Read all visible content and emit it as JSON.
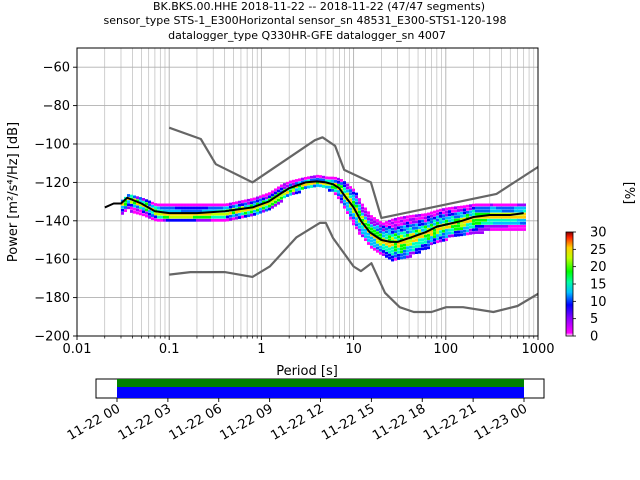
{
  "chart_data": {
    "type": "ppsd",
    "title_lines": [
      "BK.BKS.00.HHE   2018-11-22 -- 2018-11-22  (47/47 segments)",
      "sensor_type STS-1_E300Horizontal sensor_sn 48531_E300-STS1-120-198",
      "datalogger_type Q330HR-GFE datalogger_sn 4007"
    ],
    "xlabel": "Period [s]",
    "ylabel": "Power [m²/s⁴/Hz] [dB]",
    "xscale": "log",
    "xlim": [
      0.01,
      1000
    ],
    "ylim": [
      -200,
      -50
    ],
    "xticks": [
      {
        "value": 0.01,
        "label": "0.01"
      },
      {
        "value": 0.1,
        "label": "0.1"
      },
      {
        "value": 1,
        "label": "1"
      },
      {
        "value": 10,
        "label": "10"
      },
      {
        "value": 100,
        "label": "100"
      },
      {
        "value": 1000,
        "label": "1000"
      }
    ],
    "yticks": [
      -60,
      -80,
      -100,
      -120,
      -140,
      -160,
      -180,
      -200
    ],
    "grid": true,
    "nhnm": {
      "name": "NHNM",
      "color": "#666666",
      "x": [
        0.1,
        0.22,
        0.32,
        0.8,
        3.8,
        4.6,
        6.3,
        7.9,
        15.4,
        20,
        354.8,
        1000
      ],
      "y": [
        -91.5,
        -97.4,
        -110.5,
        -120.0,
        -98.0,
        -96.5,
        -101.0,
        -113.5,
        -120.0,
        -138.5,
        -126.0,
        -112.0
      ]
    },
    "nlnm": {
      "name": "NLNM",
      "color": "#666666",
      "x": [
        0.1,
        0.17,
        0.4,
        0.8,
        1.24,
        2.4,
        4.3,
        5.0,
        6.0,
        10.0,
        12.0,
        15.6,
        21.9,
        31.6,
        45.0,
        70.0,
        101.0,
        154.0,
        328.0,
        600.0,
        1000
      ],
      "y": [
        -168.0,
        -166.7,
        -166.7,
        -169.2,
        -163.7,
        -148.6,
        -141.1,
        -141.1,
        -149.0,
        -163.8,
        -166.2,
        -162.1,
        -177.5,
        -185.0,
        -187.5,
        -187.5,
        -185.0,
        -185.0,
        -187.5,
        -184.4,
        -178.0
      ]
    },
    "mean_curve": {
      "name": "mean",
      "color": "#000000",
      "x": [
        0.02,
        0.025,
        0.03,
        0.035,
        0.05,
        0.07,
        0.1,
        0.2,
        0.4,
        0.8,
        1.2,
        1.6,
        2,
        3,
        4,
        5,
        6,
        7,
        8,
        10,
        12,
        15,
        20,
        25,
        30,
        40,
        60,
        80,
        100,
        150,
        200,
        300,
        500,
        700
      ],
      "y": [
        -133,
        -131,
        -131,
        -128,
        -131,
        -135,
        -136,
        -136,
        -135,
        -133,
        -130,
        -126,
        -123,
        -120,
        -119.5,
        -120,
        -121,
        -123,
        -127,
        -133,
        -140,
        -146,
        -150,
        -151,
        -151,
        -149,
        -146,
        -143,
        -142,
        -140,
        -138,
        -137,
        -137,
        -136
      ]
    },
    "histogram_spread": {
      "x": [
        0.03,
        0.035,
        0.05,
        0.07,
        0.1,
        0.2,
        0.4,
        0.8,
        1.2,
        1.6,
        2,
        3,
        4,
        5,
        6,
        7,
        8,
        10,
        12,
        15,
        20,
        25,
        30,
        40,
        60,
        80,
        100,
        150,
        200,
        300,
        500,
        700
      ],
      "y_low": [
        -136,
        -134,
        -136,
        -139,
        -140,
        -139,
        -139,
        -137,
        -134,
        -129,
        -126,
        -123,
        -122,
        -123,
        -125,
        -129,
        -135,
        -143,
        -148,
        -153,
        -157,
        -160,
        -160,
        -158,
        -154,
        -150,
        -149,
        -147,
        -146,
        -145,
        -144,
        -144
      ],
      "y_high": [
        -129,
        -126,
        -128,
        -131,
        -131,
        -131,
        -131,
        -128,
        -125,
        -121,
        -119,
        -117,
        -116,
        -117,
        -117,
        -118,
        -120,
        -124,
        -131,
        -137,
        -141,
        -139,
        -138,
        -137,
        -136,
        -134,
        -133,
        -132,
        -131,
        -131,
        -131,
        -131
      ]
    },
    "colorbar": {
      "label": "[%]",
      "min": 0,
      "max": 30,
      "ticks": [
        0,
        5,
        10,
        15,
        20,
        25,
        30
      ]
    },
    "timeline": {
      "ticks": [
        "11-22 00",
        "11-22 03",
        "11-22 06",
        "11-22 09",
        "11-22 12",
        "11-22 15",
        "11-22 18",
        "11-22 21",
        "11-23 00"
      ],
      "bar_colors": [
        "#008000",
        "#0000ff"
      ],
      "coverage_start_hours": 0,
      "coverage_end_hours": 24
    }
  }
}
